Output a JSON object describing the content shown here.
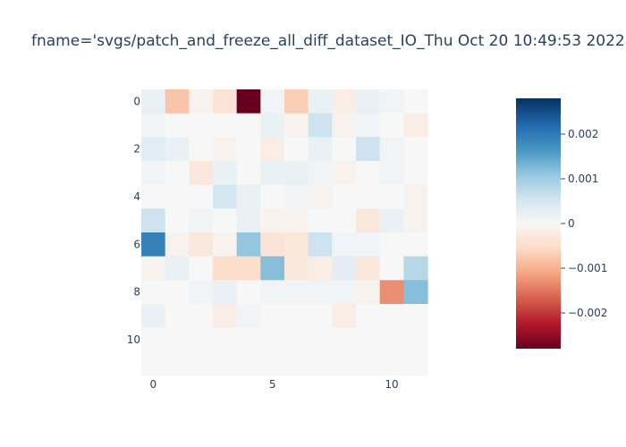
{
  "chart_data": {
    "type": "heatmap",
    "title": "fname='svgs/patch_and_freeze_all_diff_dataset_IO_Thu Oct 20 10:49:53 2022.svg'",
    "xlabel": "",
    "ylabel": "",
    "x_tick_labels": [
      "0",
      "5",
      "10"
    ],
    "x_tick_values": [
      0,
      5,
      10
    ],
    "y_tick_labels": [
      "0",
      "2",
      "4",
      "6",
      "8",
      "10"
    ],
    "y_tick_values": [
      0,
      2,
      4,
      6,
      8,
      10
    ],
    "n_cols": 12,
    "n_rows": 12,
    "zmin": -0.0028,
    "zmax": 0.0028,
    "colorscale": "RdBu",
    "colorbar_tick_labels": [
      "0.002",
      "0.001",
      "0",
      "−0.001",
      "−0.002"
    ],
    "colorbar_tick_values": [
      0.002,
      0.001,
      0,
      -0.001,
      -0.002
    ],
    "z": [
      [
        0.0002,
        -0.0008,
        -0.0001,
        -0.0004,
        -0.0028,
        0.0001,
        -0.0007,
        0.0002,
        -0.0002,
        0.0002,
        0.0001,
        0.0
      ],
      [
        0.0001,
        0.0,
        0.0,
        0.0,
        0.0,
        0.0002,
        -0.0001,
        0.0006,
        -0.0001,
        0.0001,
        0.0,
        -0.0002
      ],
      [
        0.0003,
        0.0002,
        0.0,
        -0.0001,
        0.0,
        -0.0002,
        0.0,
        0.0002,
        0.0,
        0.0006,
        0.0001,
        0.0
      ],
      [
        0.0001,
        0.0,
        -0.0003,
        0.0002,
        0.0,
        0.0002,
        0.0002,
        0.0001,
        -0.0001,
        0.0,
        0.0001,
        0.0
      ],
      [
        0.0,
        0.0,
        0.0,
        0.0005,
        0.0002,
        0.0,
        0.0001,
        -0.0001,
        0.0,
        0.0,
        0.0,
        -0.0001
      ],
      [
        0.0006,
        0.0,
        0.0001,
        0.0,
        0.0002,
        -0.0001,
        -0.0001,
        0.0,
        0.0,
        -0.0003,
        0.0002,
        -0.0001
      ],
      [
        0.0019,
        -0.0001,
        -0.0003,
        -0.0001,
        0.0011,
        -0.0004,
        -0.0003,
        0.0006,
        0.0001,
        0.0001,
        0.0,
        0.0
      ],
      [
        -0.0001,
        0.0002,
        0.0,
        -0.0005,
        -0.0005,
        0.0012,
        -0.0003,
        -0.0002,
        0.0003,
        -0.0003,
        0.0,
        0.0008
      ],
      [
        0.0,
        0.0,
        0.0001,
        0.0002,
        0.0,
        0.0001,
        0.0001,
        0.0001,
        0.0001,
        -0.0001,
        -0.0013,
        0.0012
      ],
      [
        0.0002,
        0.0,
        0.0,
        -0.0002,
        0.0001,
        0.0,
        0.0,
        0.0,
        -0.0002,
        0.0,
        0.0,
        0.0
      ],
      [
        0.0,
        0.0,
        0.0,
        0.0,
        0.0,
        0.0,
        0.0,
        0.0,
        0.0,
        0.0,
        0.0,
        0.0
      ],
      [
        0.0,
        0.0,
        0.0,
        0.0,
        0.0,
        0.0,
        0.0,
        0.0,
        0.0,
        0.0,
        0.0,
        0.0
      ]
    ]
  }
}
